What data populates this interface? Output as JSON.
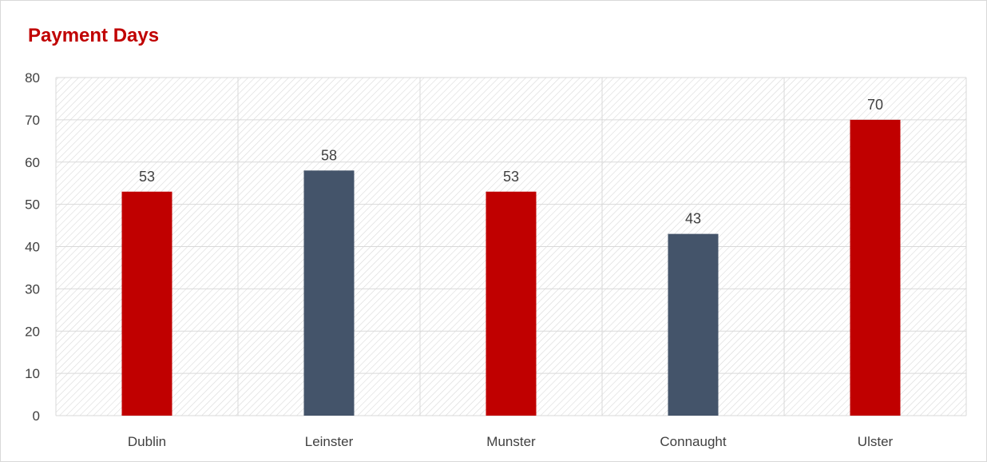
{
  "chart_data": {
    "type": "bar",
    "title": "Payment Days",
    "xlabel": "",
    "ylabel": "",
    "categories": [
      "Dublin",
      "Leinster",
      "Munster",
      "Connaught",
      "Ulster"
    ],
    "values": [
      53,
      58,
      53,
      43,
      70
    ],
    "bar_colors": [
      "#c00000",
      "#44546a",
      "#c00000",
      "#44546a",
      "#c00000"
    ],
    "data_labels": [
      "53",
      "58",
      "53",
      "43",
      "70"
    ],
    "ylim": [
      0,
      80
    ],
    "yticks": [
      0,
      10,
      20,
      30,
      40,
      50,
      60,
      70,
      80
    ],
    "ytick_labels": [
      "0",
      "10",
      "20",
      "30",
      "40",
      "50",
      "60",
      "70",
      "80"
    ],
    "grid": true,
    "plot_background": "diagonal-hatch",
    "legend": "none",
    "colors": {
      "title": "#c00000",
      "gridline": "#d9d9d9",
      "hatch": "#d9d9d9",
      "text": "#404040"
    }
  }
}
